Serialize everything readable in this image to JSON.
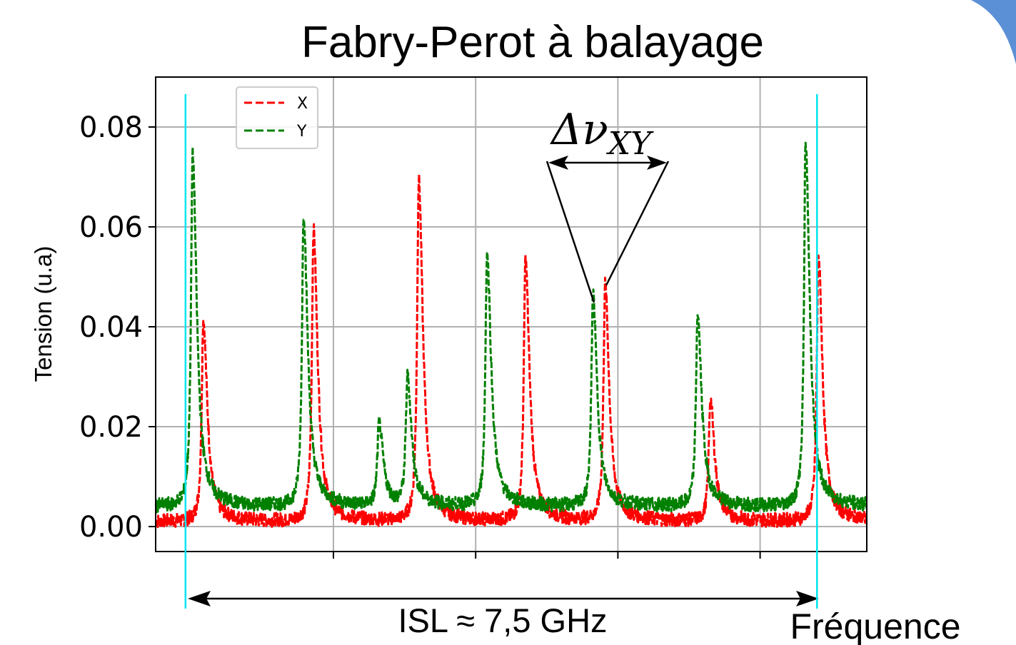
{
  "chart_data": {
    "type": "line",
    "title": "Fabry-Perot à balayage",
    "xlabel": "Fréquence",
    "ylabel": "Tension (u.a)",
    "xlim": [
      0,
      1000
    ],
    "ylim": [
      -0.005,
      0.09
    ],
    "x_ticks": [
      250,
      450,
      650,
      850
    ],
    "y_ticks": [
      0.0,
      0.02,
      0.04,
      0.06,
      0.08
    ],
    "y_tick_labels": [
      "0.00",
      "0.02",
      "0.04",
      "0.06",
      "0.08"
    ],
    "grid": true,
    "legend_position": "top-left",
    "series": [
      {
        "name": "X",
        "color": "#ff0000",
        "linestyle": "dashed",
        "baseline": 0.001,
        "peaks": [
          {
            "x": 67,
            "y": 0.041,
            "w": 5
          },
          {
            "x": 222,
            "y": 0.059,
            "w": 5
          },
          {
            "x": 370,
            "y": 0.069,
            "w": 5
          },
          {
            "x": 520,
            "y": 0.053,
            "w": 5
          },
          {
            "x": 632,
            "y": 0.048,
            "w": 5
          },
          {
            "x": 780,
            "y": 0.025,
            "w": 5
          },
          {
            "x": 932,
            "y": 0.054,
            "w": 5
          }
        ]
      },
      {
        "name": "Y",
        "color": "#008000",
        "linestyle": "dashed",
        "baseline": 0.004,
        "peaks": [
          {
            "x": 52,
            "y": 0.073,
            "w": 5
          },
          {
            "x": 208,
            "y": 0.061,
            "w": 5
          },
          {
            "x": 314,
            "y": 0.019,
            "w": 5
          },
          {
            "x": 354,
            "y": 0.028,
            "w": 5
          },
          {
            "x": 466,
            "y": 0.053,
            "w": 5
          },
          {
            "x": 615,
            "y": 0.045,
            "w": 5
          },
          {
            "x": 762,
            "y": 0.041,
            "w": 5
          },
          {
            "x": 914,
            "y": 0.075,
            "w": 5
          }
        ]
      }
    ],
    "markers": {
      "color": "#00e5ee",
      "x": [
        42,
        930
      ]
    },
    "annotations": {
      "delta": "Δν",
      "delta_subscript": "XY",
      "isl_text": "ISL ≈ 7,5 GHz"
    }
  }
}
